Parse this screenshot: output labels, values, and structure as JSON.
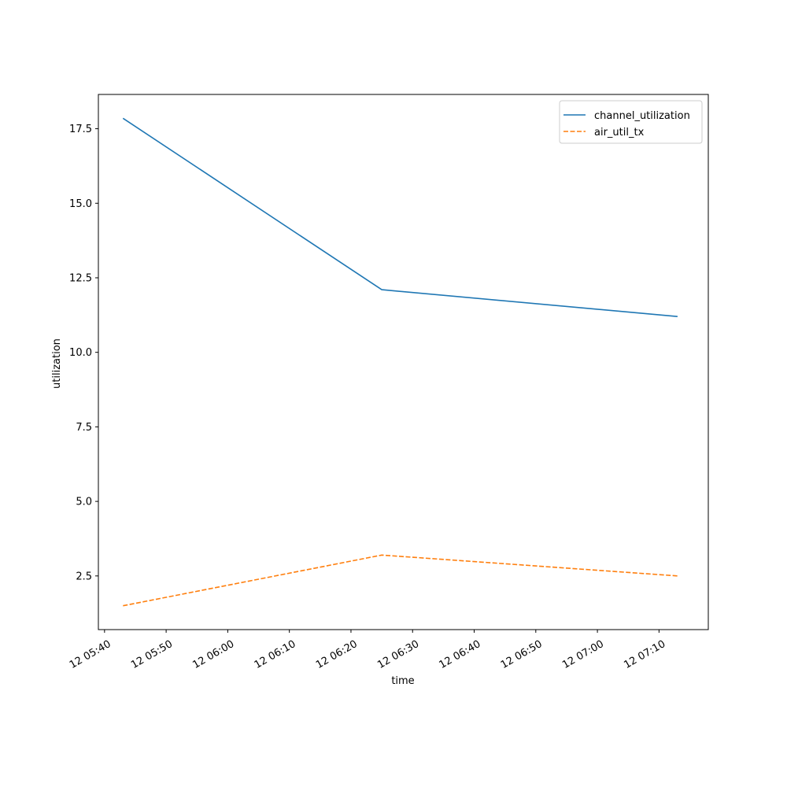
{
  "chart_data": {
    "type": "line",
    "xlabel": "time",
    "ylabel": "utilization",
    "x_ticks": [
      "12 05:40",
      "12 05:50",
      "12 06:00",
      "12 06:10",
      "12 06:20",
      "12 06:30",
      "12 06:40",
      "12 06:50",
      "12 07:00",
      "12 07:10"
    ],
    "y_ticks": [
      "2.5",
      "5.0",
      "7.5",
      "10.0",
      "12.5",
      "15.0",
      "17.5"
    ],
    "x": [
      "05:43",
      "06:25",
      "07:13"
    ],
    "xlim": [
      "05:39",
      "07:18"
    ],
    "ylim": [
      0.7,
      18.65
    ],
    "grid": false,
    "legend_position": "top-right",
    "series": [
      {
        "name": "channel_utilization",
        "values": [
          17.85,
          12.1,
          11.2
        ],
        "color": "#1f77b4",
        "style": "solid"
      },
      {
        "name": "air_util_tx",
        "values": [
          1.5,
          3.2,
          2.5
        ],
        "color": "#ff7f0e",
        "style": "dashed"
      }
    ]
  }
}
